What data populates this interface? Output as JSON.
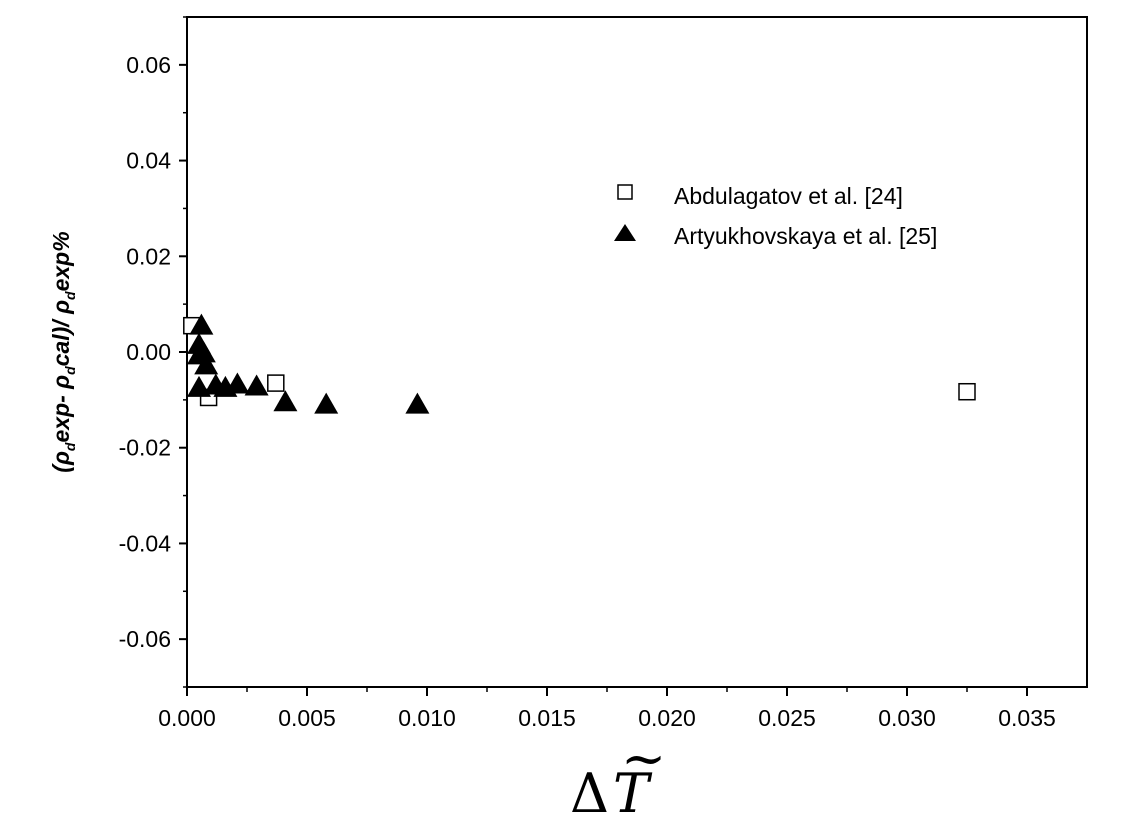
{
  "chart_data": {
    "type": "scatter",
    "title": "",
    "xlabel": "ΔT̃",
    "ylabel": "(ρdexp- ρdcal)/ ρdexp%",
    "ylabel_parts": {
      "open": "(",
      "rho1": "ρ",
      "sub1": "d",
      "exp1": "exp- ",
      "rho2": "ρ",
      "sub2": "d",
      "cal": "cal)/ ",
      "rho3": "ρ",
      "sub3": "d",
      "exp2": "exp%"
    },
    "xlabel_parts": {
      "delta": "Δ",
      "var": "T",
      "tilde": "~"
    },
    "xlim": [
      0,
      0.0375
    ],
    "ylim": [
      -0.07,
      0.07
    ],
    "xticks": [
      0.0,
      0.005,
      0.01,
      0.015,
      0.02,
      0.025,
      0.03,
      0.035
    ],
    "xtick_labels": [
      "0.000",
      "0.005",
      "0.010",
      "0.015",
      "0.020",
      "0.025",
      "0.030",
      "0.035"
    ],
    "yticks": [
      0.06,
      0.04,
      0.02,
      0.0,
      -0.02,
      -0.04,
      -0.06
    ],
    "ytick_labels": [
      "0.06",
      "0.04",
      "0.02",
      "0.00",
      "-0.02",
      "-0.04",
      "-0.06"
    ],
    "grid": false,
    "legend_position": "upper-right",
    "series": [
      {
        "name": "Abdulagatov et al. [24]",
        "marker": "open-square",
        "color": "#000000",
        "points": [
          [
            0.0002,
            0.0055
          ],
          [
            0.0009,
            -0.0095
          ],
          [
            0.0037,
            -0.0065
          ],
          [
            0.0325,
            -0.0083
          ]
        ]
      },
      {
        "name": "Artyukhovskaya et al. [25]",
        "marker": "filled-triangle",
        "color": "#000000",
        "points": [
          [
            0.0005,
            0.0015
          ],
          [
            0.0005,
            -0.0007
          ],
          [
            0.0006,
            0.0055
          ],
          [
            0.0007,
            -0.0003
          ],
          [
            0.0008,
            -0.0028
          ],
          [
            0.0005,
            -0.0075
          ],
          [
            0.0012,
            -0.007
          ],
          [
            0.0016,
            -0.0075
          ],
          [
            0.0021,
            -0.0068
          ],
          [
            0.0029,
            -0.0072
          ],
          [
            0.0041,
            -0.0105
          ],
          [
            0.0058,
            -0.011
          ],
          [
            0.0096,
            -0.011
          ]
        ]
      }
    ]
  }
}
